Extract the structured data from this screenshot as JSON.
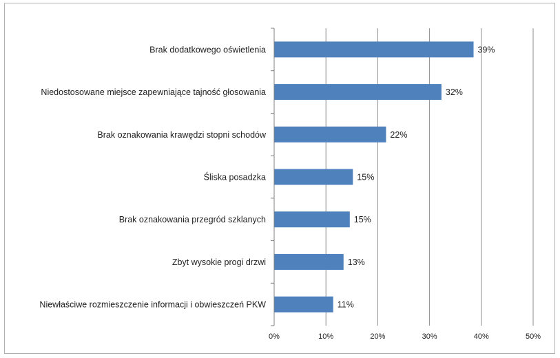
{
  "chart_data": {
    "type": "bar",
    "orientation": "horizontal",
    "categories": [
      "Brak dodatkowego oświetlenia",
      "Niedostosowane miejsce zapewniające tajność głosowania",
      "Brak oznakowania krawędzi stopni schodów",
      "Śliska posadzka",
      "Brak oznakowania przegród szklanych",
      "Zbyt wysokie progi drzwi",
      "Niewłaściwe rozmieszczenie informacji i obwieszczeń PKW"
    ],
    "values": [
      38.5,
      32.3,
      21.6,
      15.2,
      14.6,
      13.4,
      11.4
    ],
    "data_labels": [
      "39%",
      "32%",
      "22%",
      "15%",
      "15%",
      "13%",
      "11%"
    ],
    "x_ticks": [
      0,
      10,
      20,
      30,
      40,
      50
    ],
    "x_tick_labels": [
      "0%",
      "10%",
      "20%",
      "30%",
      "40%",
      "50%"
    ],
    "xlim": [
      0,
      50
    ],
    "grid": "vertical",
    "legend": "none",
    "bar_color": "#4f81bd",
    "title": "",
    "xlabel": "",
    "ylabel": ""
  }
}
